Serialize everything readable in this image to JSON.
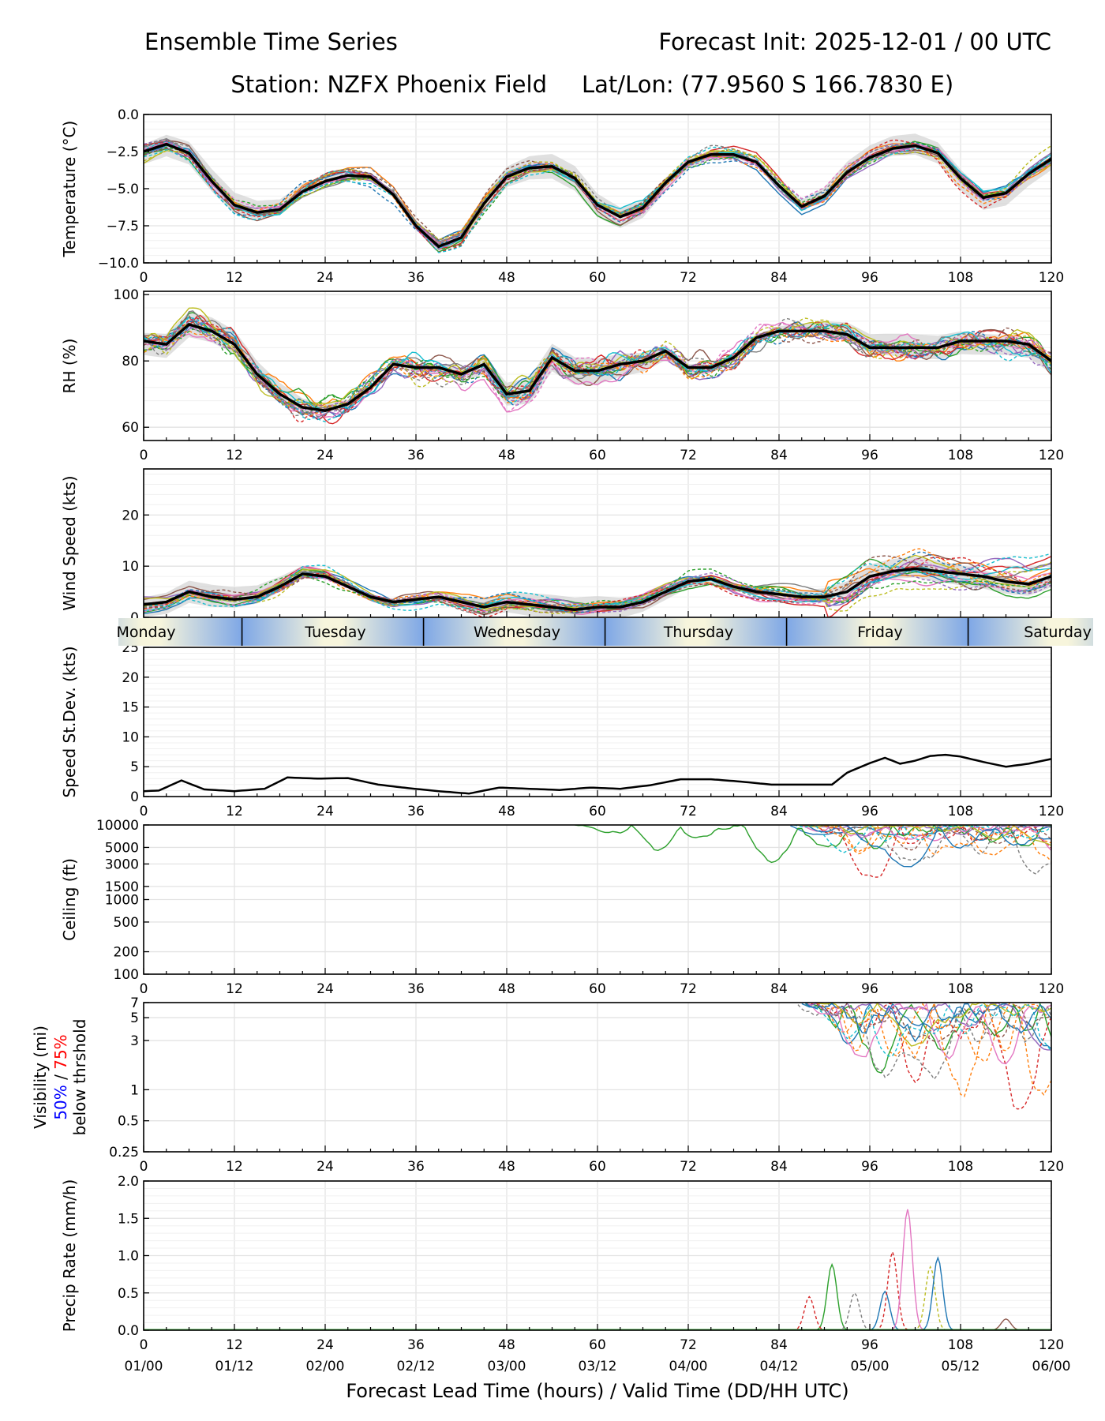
{
  "header": {
    "title_left": "Ensemble Time Series",
    "title_right": "Forecast Init: 2025-12-01 / 00 UTC",
    "station": "Station: NZFX Phoenix Field",
    "latlon": "Lat/Lon: (77.9560 S 166.7830 E)"
  },
  "colors": {
    "members": [
      "#1f77b4",
      "#ff7f0e",
      "#2ca02c",
      "#d62728",
      "#9467bd",
      "#8c564b",
      "#e377c2",
      "#7f7f7f",
      "#bcbd22",
      "#17becf"
    ],
    "mean": "#000000",
    "spread": "#cccccc",
    "grid": "#e3e3e3",
    "day_blue": "#7ea7e6",
    "day_cream": "#f7f5dc",
    "vis_50": "#0000ff",
    "vis_75": "#ff0000"
  },
  "chart_data": [
    {
      "id": "temp",
      "type": "line",
      "ylabel": "Temperature (°C)",
      "xlim": [
        0,
        120
      ],
      "ylim": [
        -10.0,
        0.0
      ],
      "yticks": [
        -10.0,
        -7.5,
        -5.0,
        -2.5,
        0.0
      ],
      "yticklabels": [
        "−10.0",
        "−7.5",
        "−5.0",
        "−2.5",
        "0.0"
      ],
      "grid": true,
      "mean": {
        "x": [
          0,
          3,
          6,
          9,
          12,
          15,
          18,
          21,
          24,
          27,
          30,
          33,
          36,
          39,
          42,
          45,
          48,
          51,
          54,
          57,
          60,
          63,
          66,
          69,
          72,
          75,
          78,
          81,
          84,
          87,
          90,
          93,
          96,
          99,
          102,
          105,
          108,
          111,
          114,
          117,
          120
        ],
        "y": [
          -2.5,
          -2.0,
          -2.6,
          -4.5,
          -6.1,
          -6.6,
          -6.4,
          -5.2,
          -4.5,
          -4.1,
          -4.2,
          -5.4,
          -7.5,
          -8.9,
          -8.3,
          -6.0,
          -4.2,
          -3.6,
          -3.5,
          -4.3,
          -6.1,
          -6.9,
          -6.3,
          -4.6,
          -3.2,
          -2.7,
          -2.7,
          -3.2,
          -4.8,
          -6.2,
          -5.5,
          -3.9,
          -2.9,
          -2.3,
          -2.1,
          -2.6,
          -4.3,
          -5.6,
          -5.3,
          -4.0,
          -3.0
        ]
      },
      "spread": 0.7,
      "member_count": 20
    },
    {
      "id": "rh",
      "type": "line",
      "ylabel": "RH (%)",
      "xlim": [
        0,
        120
      ],
      "ylim": [
        56,
        101
      ],
      "yticks": [
        60,
        80,
        100
      ],
      "yticklabels": [
        "60",
        "80",
        "100"
      ],
      "grid": true,
      "mean": {
        "x": [
          0,
          3,
          6,
          9,
          12,
          15,
          18,
          21,
          24,
          27,
          30,
          33,
          36,
          39,
          42,
          45,
          48,
          51,
          54,
          57,
          60,
          63,
          66,
          69,
          72,
          75,
          78,
          81,
          84,
          87,
          90,
          93,
          96,
          99,
          102,
          105,
          108,
          111,
          114,
          117,
          120
        ],
        "y": [
          86,
          85,
          91,
          89,
          85,
          76,
          70,
          66,
          65,
          67,
          72,
          79,
          78,
          78,
          76,
          79,
          70,
          71,
          81,
          77,
          77,
          79,
          80,
          83,
          78,
          78,
          81,
          87,
          89,
          89,
          89,
          88,
          84,
          84,
          84,
          84,
          86,
          86,
          86,
          85,
          80
        ]
      },
      "spread": 3.5,
      "member_count": 20
    },
    {
      "id": "wind",
      "type": "line",
      "ylabel": "Wind Speed (kts)",
      "xlim": [
        0,
        120
      ],
      "ylim": [
        0,
        29
      ],
      "yticks": [
        0,
        10,
        20
      ],
      "yticklabels": [
        "0",
        "10",
        "20"
      ],
      "grid": true,
      "mean": {
        "x": [
          0,
          3,
          6,
          9,
          12,
          15,
          18,
          21,
          24,
          27,
          30,
          33,
          36,
          39,
          42,
          45,
          48,
          51,
          54,
          57,
          60,
          63,
          66,
          69,
          72,
          75,
          78,
          81,
          84,
          87,
          90,
          93,
          96,
          99,
          102,
          105,
          108,
          111,
          114,
          117,
          120
        ],
        "y": [
          2.5,
          3,
          5,
          4,
          3.5,
          4,
          6,
          8.5,
          8,
          6,
          4,
          3,
          3.5,
          4,
          3,
          2,
          3,
          2.5,
          2,
          1.5,
          2,
          2,
          3,
          5,
          7,
          7.5,
          6,
          5,
          4.5,
          4,
          4,
          5,
          8,
          9,
          9.5,
          9,
          8.5,
          8,
          7,
          6.5,
          8
        ]
      },
      "spread": 2.0,
      "member_count": 20
    },
    {
      "id": "sd",
      "type": "line",
      "ylabel": "Speed St.Dev. (kts)",
      "xlim": [
        0,
        120
      ],
      "ylim": [
        0,
        25
      ],
      "yticks": [
        0,
        5,
        10,
        15,
        20,
        25
      ],
      "yticklabels": [
        "0",
        "5",
        "10",
        "15",
        "20",
        "25"
      ],
      "grid": true,
      "mean": {
        "x": [
          0,
          2,
          5,
          8,
          12,
          16,
          19,
          23,
          27,
          31,
          35,
          39,
          43,
          47,
          51,
          55,
          59,
          63,
          67,
          71,
          75,
          79,
          83,
          87,
          91,
          93,
          96,
          98,
          100,
          102,
          104,
          106,
          108,
          111,
          114,
          117,
          120
        ],
        "y": [
          0.9,
          1.0,
          2.7,
          1.2,
          0.9,
          1.3,
          3.2,
          3.0,
          3.1,
          2.0,
          1.4,
          0.9,
          0.5,
          1.5,
          1.3,
          1.1,
          1.5,
          1.3,
          1.9,
          2.9,
          2.9,
          2.5,
          2.0,
          2.0,
          2.0,
          4.0,
          5.6,
          6.5,
          5.5,
          6.0,
          6.8,
          7.0,
          6.7,
          5.8,
          5.0,
          5.5,
          6.3
        ]
      },
      "member_count": 0
    },
    {
      "id": "ceil",
      "type": "line",
      "ylabel": "Ceiling (ft)",
      "yscale": "log",
      "xlim": [
        0,
        120
      ],
      "ylim": [
        100,
        10000
      ],
      "yticks": [
        100,
        200,
        500,
        1000,
        1500,
        3000,
        5000,
        10000
      ],
      "yticklabels": [
        "100",
        "200",
        "500",
        "1000",
        "1500",
        "3000",
        "5000",
        "10000"
      ],
      "grid": true,
      "member_count": 12
    },
    {
      "id": "vis",
      "type": "line",
      "ylabel": "Visibility (mi)",
      "ylabel_50": "50%",
      "ylabel_sep": " / ",
      "ylabel_75": "75%",
      "ylabel_3": "below thrshold",
      "yscale": "log",
      "xlim": [
        0,
        120
      ],
      "ylim": [
        0.25,
        7
      ],
      "yticks": [
        0.25,
        0.5,
        1,
        3,
        5,
        7
      ],
      "yticklabels": [
        "0.25",
        "0.5",
        "1",
        "3",
        "5",
        "7"
      ],
      "grid": true,
      "member_count": 12
    },
    {
      "id": "precip",
      "type": "line",
      "ylabel": "Precip Rate (mm/h)",
      "xlim": [
        0,
        120
      ],
      "ylim": [
        0,
        2.0
      ],
      "yticks": [
        0.0,
        0.5,
        1.0,
        1.5,
        2.0
      ],
      "yticklabels": [
        "0.0",
        "0.5",
        "1.0",
        "1.5",
        "2.0"
      ],
      "grid": true,
      "peaks": [
        {
          "x": 91,
          "y": 0.88,
          "c": 2
        },
        {
          "x": 94,
          "y": 0.5,
          "c": 7
        },
        {
          "x": 98,
          "y": 0.52,
          "c": 0
        },
        {
          "x": 99,
          "y": 1.05,
          "c": 3
        },
        {
          "x": 101,
          "y": 1.62,
          "c": 6
        },
        {
          "x": 104,
          "y": 0.85,
          "c": 8
        },
        {
          "x": 105,
          "y": 0.97,
          "c": 0
        },
        {
          "x": 88,
          "y": 0.45,
          "c": 3
        },
        {
          "x": 114,
          "y": 0.15,
          "c": 5
        }
      ]
    }
  ],
  "xaxis": {
    "ticks": [
      0,
      12,
      24,
      36,
      48,
      60,
      72,
      84,
      96,
      108,
      120
    ],
    "ticklabels": [
      "0",
      "12",
      "24",
      "36",
      "48",
      "60",
      "72",
      "84",
      "96",
      "108",
      "120"
    ],
    "valid_labels": [
      "01/00",
      "01/12",
      "02/00",
      "02/12",
      "03/00",
      "03/12",
      "04/00",
      "04/12",
      "05/00",
      "05/12",
      "06/00"
    ],
    "xlabel": "Forecast Lead Time (hours) / Valid Time (DD/HH UTC)"
  },
  "day_band": {
    "days": [
      "Monday",
      "Tuesday",
      "Wednesday",
      "Thursday",
      "Friday",
      "Saturday"
    ],
    "boundaries_hours": [
      13,
      37,
      61,
      85,
      109
    ]
  }
}
